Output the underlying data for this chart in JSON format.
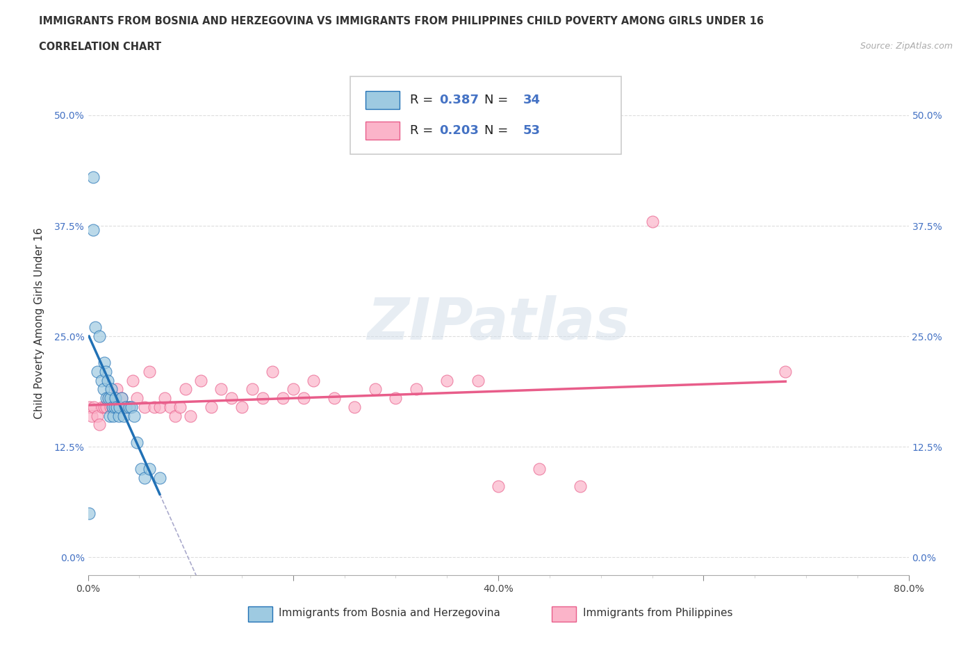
{
  "title_line1": "IMMIGRANTS FROM BOSNIA AND HERZEGOVINA VS IMMIGRANTS FROM PHILIPPINES CHILD POVERTY AMONG GIRLS UNDER 16",
  "title_line2": "CORRELATION CHART",
  "source": "Source: ZipAtlas.com",
  "ylabel": "Child Poverty Among Girls Under 16",
  "xlim": [
    0.0,
    0.8
  ],
  "ylim": [
    -0.02,
    0.55
  ],
  "yticks": [
    0.0,
    0.125,
    0.25,
    0.375,
    0.5
  ],
  "ytick_labels": [
    "0.0%",
    "12.5%",
    "25.0%",
    "37.5%",
    "50.0%"
  ],
  "xticks": [
    0.0,
    0.2,
    0.4,
    0.6,
    0.8
  ],
  "xtick_labels": [
    "0.0%",
    "",
    "40.0%",
    "",
    "80.0%"
  ],
  "watermark": "ZIPatlas",
  "R_bosnia": 0.387,
  "N_bosnia": 34,
  "R_philippines": 0.203,
  "N_philippines": 53,
  "color_bosnia": "#9ecae1",
  "color_philippines": "#fbb4c9",
  "trendline_color_bosnia": "#2171b5",
  "trendline_color_philippines": "#e85d8a",
  "bosnia_x": [
    0.001,
    0.005,
    0.005,
    0.007,
    0.009,
    0.011,
    0.013,
    0.015,
    0.016,
    0.017,
    0.018,
    0.019,
    0.02,
    0.021,
    0.022,
    0.023,
    0.024,
    0.025,
    0.026,
    0.027,
    0.028,
    0.03,
    0.031,
    0.033,
    0.035,
    0.037,
    0.04,
    0.042,
    0.045,
    0.048,
    0.052,
    0.055,
    0.06,
    0.07
  ],
  "bosnia_y": [
    0.05,
    0.43,
    0.37,
    0.26,
    0.21,
    0.25,
    0.2,
    0.19,
    0.22,
    0.21,
    0.18,
    0.2,
    0.18,
    0.16,
    0.18,
    0.19,
    0.17,
    0.16,
    0.17,
    0.18,
    0.17,
    0.16,
    0.17,
    0.18,
    0.16,
    0.17,
    0.17,
    0.17,
    0.16,
    0.13,
    0.1,
    0.09,
    0.1,
    0.09
  ],
  "philippines_x": [
    0.002,
    0.004,
    0.006,
    0.009,
    0.011,
    0.014,
    0.016,
    0.018,
    0.02,
    0.022,
    0.024,
    0.026,
    0.028,
    0.03,
    0.033,
    0.036,
    0.04,
    0.044,
    0.048,
    0.055,
    0.06,
    0.065,
    0.07,
    0.075,
    0.08,
    0.085,
    0.09,
    0.095,
    0.1,
    0.11,
    0.12,
    0.13,
    0.14,
    0.15,
    0.16,
    0.17,
    0.18,
    0.19,
    0.2,
    0.21,
    0.22,
    0.24,
    0.26,
    0.28,
    0.3,
    0.32,
    0.35,
    0.38,
    0.4,
    0.44,
    0.48,
    0.55,
    0.68
  ],
  "philippines_y": [
    0.17,
    0.16,
    0.17,
    0.16,
    0.15,
    0.17,
    0.17,
    0.17,
    0.18,
    0.17,
    0.17,
    0.18,
    0.19,
    0.17,
    0.18,
    0.17,
    0.17,
    0.2,
    0.18,
    0.17,
    0.21,
    0.17,
    0.17,
    0.18,
    0.17,
    0.16,
    0.17,
    0.19,
    0.16,
    0.2,
    0.17,
    0.19,
    0.18,
    0.17,
    0.19,
    0.18,
    0.21,
    0.18,
    0.19,
    0.18,
    0.2,
    0.18,
    0.17,
    0.19,
    0.18,
    0.19,
    0.2,
    0.2,
    0.08,
    0.1,
    0.08,
    0.38,
    0.21
  ]
}
